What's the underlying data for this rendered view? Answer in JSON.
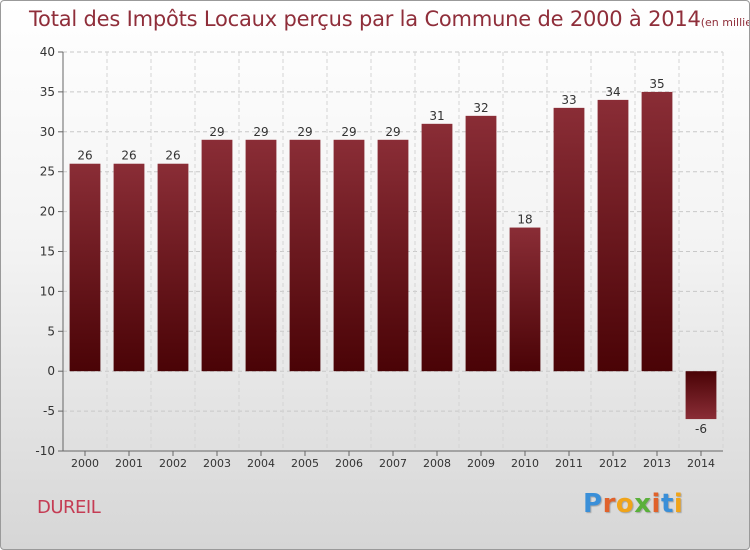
{
  "title": "Total des Impôts Locaux perçus par la Commune de 2000 à 2014",
  "title_unit": "(en milliers d'€)",
  "commune": "DUREIL",
  "logo": {
    "letters": [
      "P",
      "r",
      "o",
      "x",
      "i",
      "t",
      "i"
    ],
    "colors": [
      "#3a8fd8",
      "#e0622b",
      "#f0a419",
      "#5ab03a",
      "#e0622b",
      "#3a8fd8",
      "#f0a419"
    ]
  },
  "chart_data": {
    "type": "bar",
    "categories": [
      "2000",
      "2001",
      "2002",
      "2003",
      "2004",
      "2005",
      "2006",
      "2007",
      "2008",
      "2009",
      "2010",
      "2011",
      "2012",
      "2013",
      "2014"
    ],
    "values": [
      26,
      26,
      26,
      29,
      29,
      29,
      29,
      29,
      31,
      32,
      18,
      33,
      34,
      35,
      -6
    ],
    "ylim": [
      -10,
      40
    ],
    "yticks": [
      -10,
      -5,
      0,
      5,
      10,
      15,
      20,
      25,
      30,
      35,
      40
    ],
    "grid": true,
    "bar_color": "#6e1a1e"
  }
}
